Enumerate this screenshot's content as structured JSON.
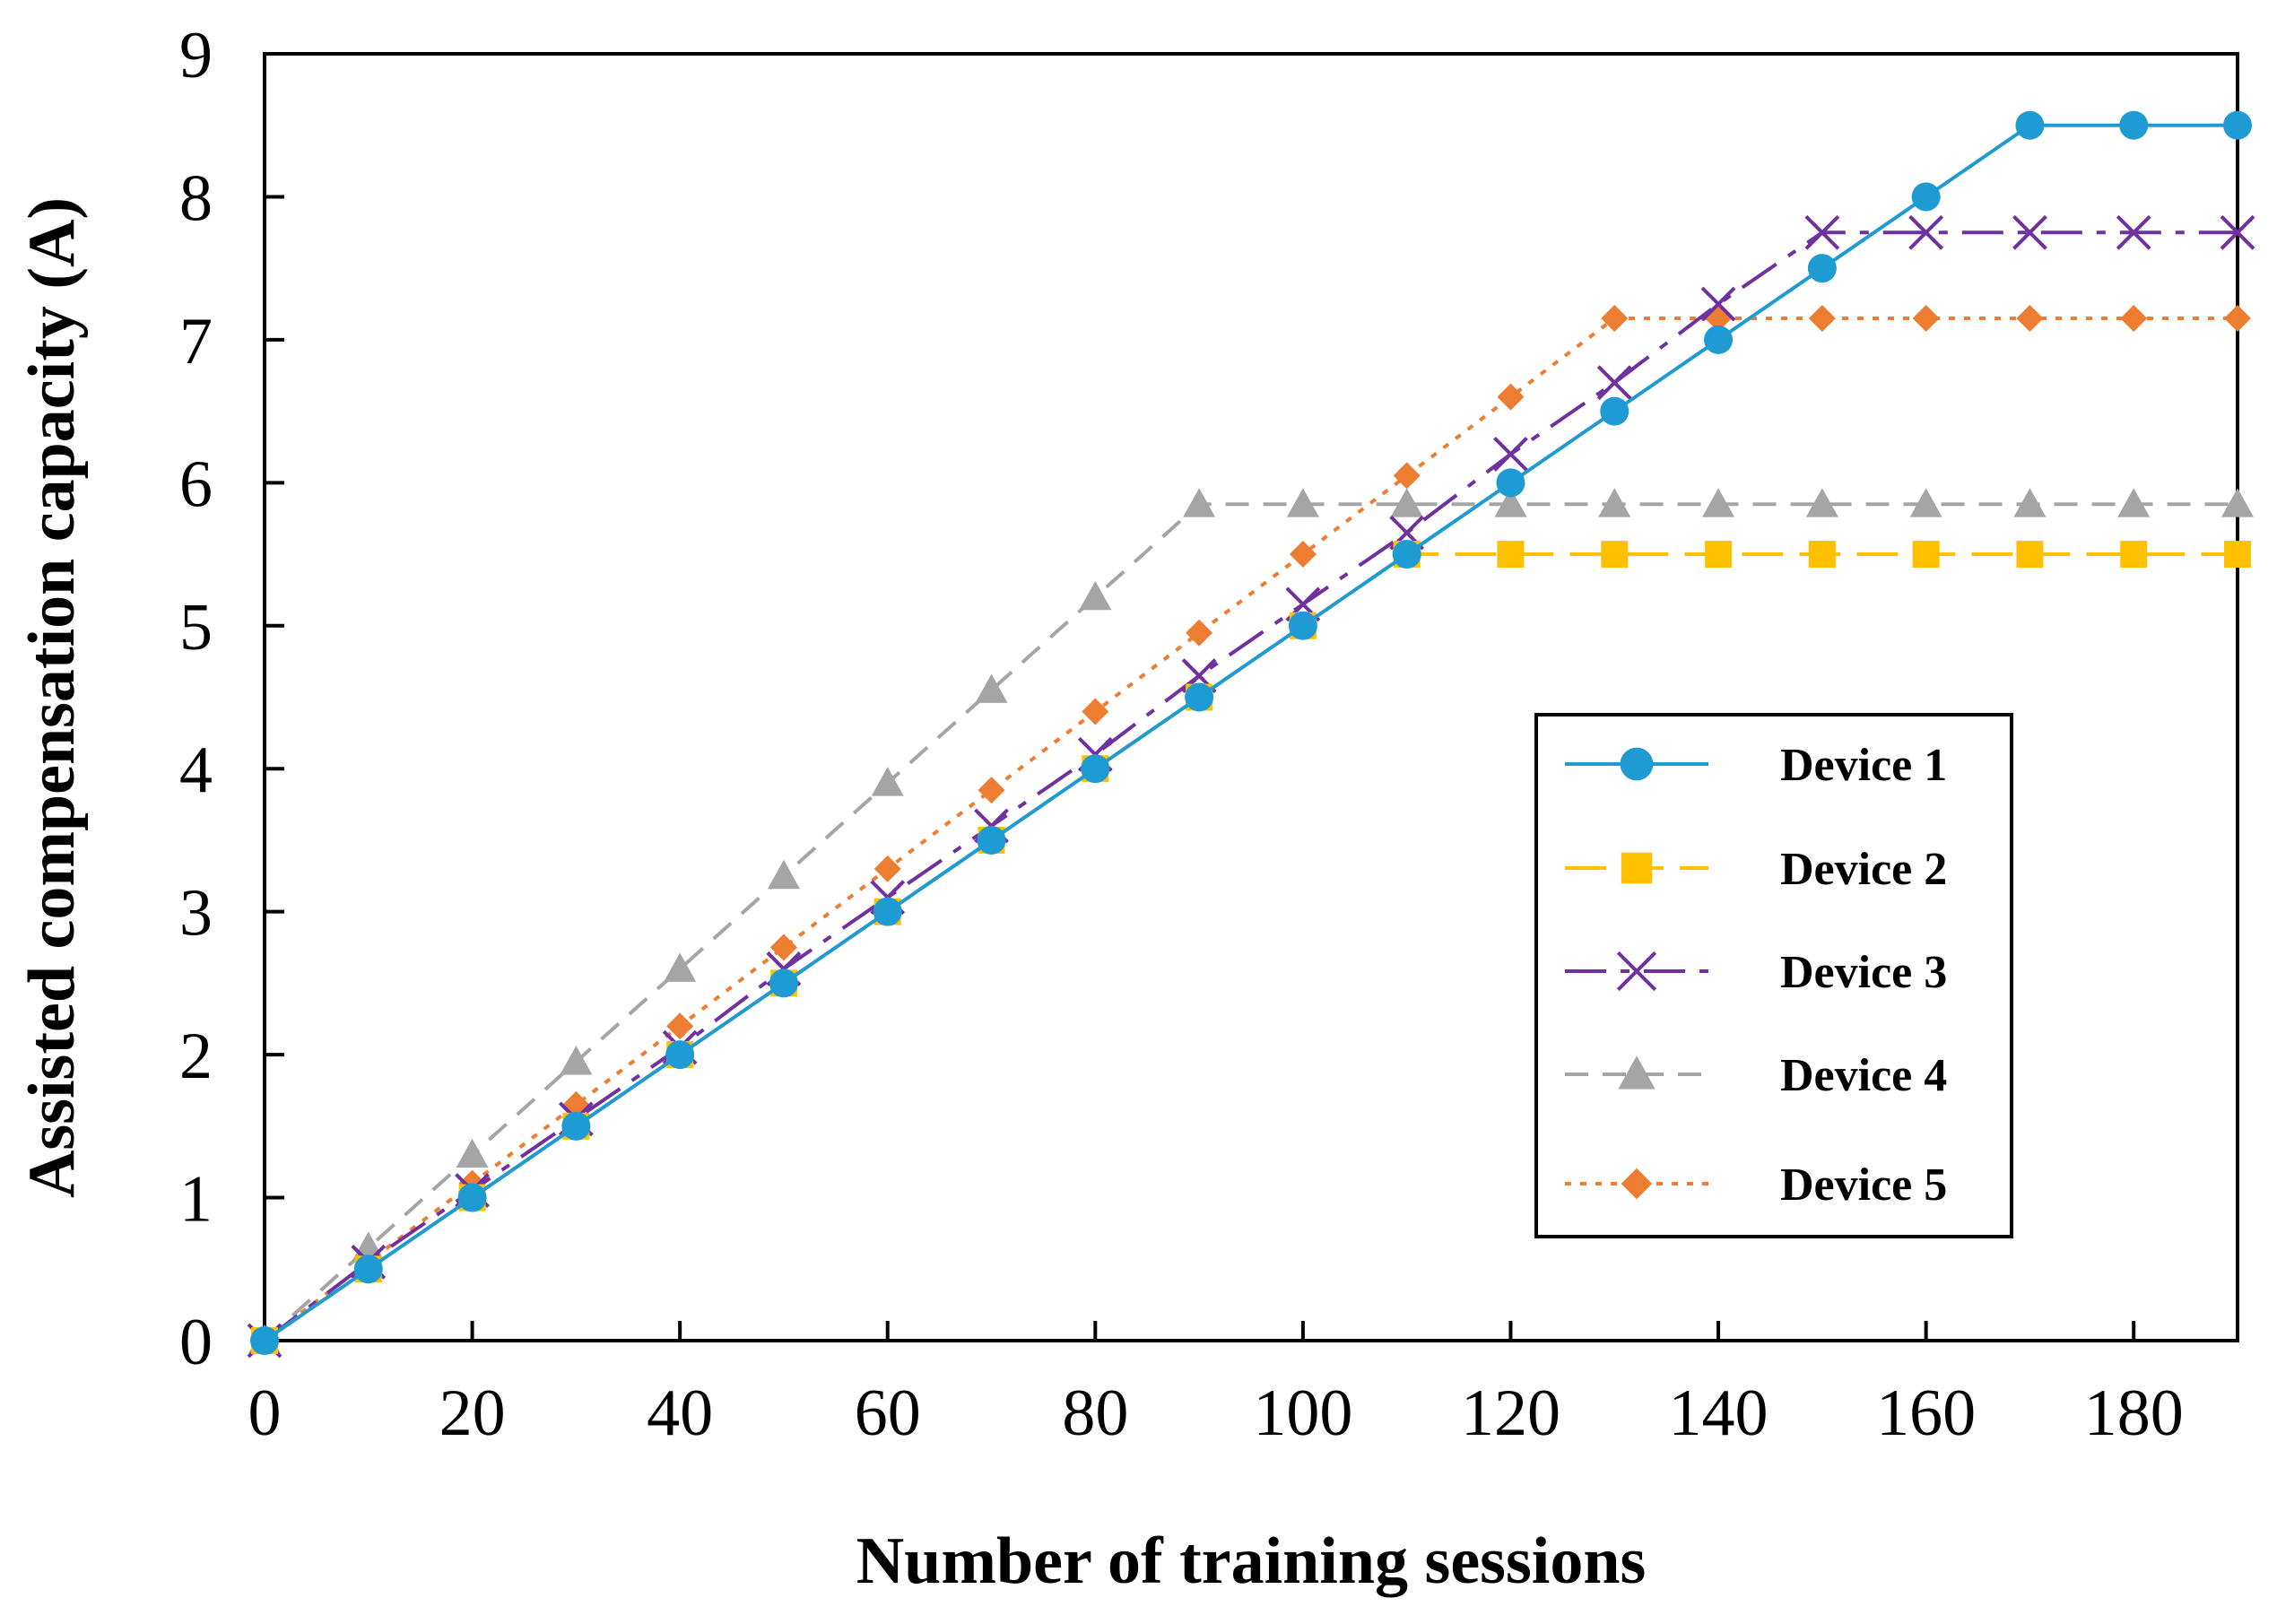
{
  "chart_data": {
    "type": "line",
    "title": "",
    "xlabel": "Number of training sessions",
    "ylabel": "Assisted compensation capacity (A)",
    "xlim": [
      0,
      190
    ],
    "ylim": [
      0,
      9
    ],
    "xticks": [
      0,
      20,
      40,
      60,
      80,
      100,
      120,
      140,
      160,
      180
    ],
    "xtick_labels": [
      "0",
      "20",
      "40",
      "60",
      "80",
      "100",
      "120",
      "140",
      "160",
      "180"
    ],
    "yticks": [
      0,
      1,
      2,
      3,
      4,
      5,
      6,
      7,
      8,
      9
    ],
    "ytick_labels": [
      "0",
      "1",
      "2",
      "3",
      "4",
      "5",
      "6",
      "7",
      "8",
      "9"
    ],
    "grid": false,
    "legend_position": "right",
    "x": [
      0,
      10,
      20,
      30,
      40,
      50,
      60,
      70,
      80,
      90,
      100,
      110,
      120,
      130,
      140,
      150,
      160,
      170,
      180,
      190
    ],
    "series": [
      {
        "name": "Device 1",
        "color": "#1f9bd4",
        "dash": "solid",
        "marker": "circle",
        "values": [
          0,
          0.5,
          1.0,
          1.5,
          2.0,
          2.5,
          3.0,
          3.5,
          4.0,
          4.5,
          5.0,
          5.5,
          6.0,
          6.5,
          7.0,
          7.5,
          8.0,
          8.5,
          8.5,
          8.5
        ]
      },
      {
        "name": "Device 2",
        "color": "#ffc000",
        "dash": "longdash",
        "marker": "square",
        "values": [
          0,
          0.5,
          1.0,
          1.5,
          2.0,
          2.5,
          3.0,
          3.5,
          4.0,
          4.5,
          5.0,
          5.5,
          5.5,
          5.5,
          5.5,
          5.5,
          5.5,
          5.5,
          5.5,
          5.5
        ]
      },
      {
        "name": "Device 3",
        "color": "#7030a0",
        "dash": "dashdot",
        "marker": "x",
        "values": [
          0,
          0.55,
          1.05,
          1.55,
          2.05,
          2.6,
          3.1,
          3.6,
          4.1,
          4.65,
          5.15,
          5.65,
          6.2,
          6.7,
          7.25,
          7.75,
          7.75,
          7.75,
          7.75,
          7.75
        ]
      },
      {
        "name": "Device 4",
        "color": "#a5a5a5",
        "dash": "dash",
        "marker": "triangle",
        "values": [
          0,
          0.65,
          1.3,
          1.95,
          2.6,
          3.25,
          3.9,
          4.55,
          5.2,
          5.85,
          5.85,
          5.85,
          5.85,
          5.85,
          5.85,
          5.85,
          5.85,
          5.85,
          5.85,
          5.85
        ]
      },
      {
        "name": "Device 5",
        "color": "#ed7d31",
        "dash": "dot",
        "marker": "diamond",
        "values": [
          0,
          0.55,
          1.1,
          1.65,
          2.2,
          2.75,
          3.3,
          3.85,
          4.4,
          4.95,
          5.5,
          6.05,
          6.6,
          7.15,
          7.15,
          7.15,
          7.15,
          7.15,
          7.15,
          7.15
        ]
      }
    ]
  }
}
